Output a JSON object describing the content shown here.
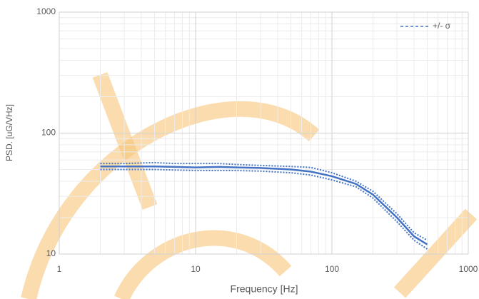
{
  "chart_data": {
    "type": "line",
    "x_label": "Frequency [Hz]",
    "y_label": "PSD. [uG/VHz]",
    "x": [
      2,
      3,
      5,
      7,
      10,
      15,
      20,
      30,
      50,
      70,
      100,
      150,
      200,
      300,
      400,
      500
    ],
    "series": [
      {
        "color": "#4472c4",
        "style": "solid",
        "values": [
          53,
          53,
          53,
          52.5,
          52,
          52.5,
          52,
          51.5,
          50,
          48,
          44,
          38,
          31,
          20,
          14,
          12
        ]
      },
      {
        "name": "+/- σ",
        "color": "#4472c4",
        "style": "dotted",
        "values": [
          56,
          56,
          57,
          56,
          56,
          56,
          55,
          54,
          53,
          52,
          47,
          40,
          33,
          21.5,
          15,
          13
        ]
      },
      {
        "color": "#4472c4",
        "style": "dotted",
        "values": [
          50,
          50,
          50,
          49.5,
          49,
          49,
          49,
          48.5,
          47,
          45,
          41,
          36,
          29,
          18.5,
          13,
          11
        ]
      }
    ],
    "xlim": [
      1,
      1000
    ],
    "ylim": [
      10,
      1000
    ],
    "xticks": [
      1,
      10,
      100,
      1000
    ],
    "yticks": [
      10,
      100,
      1000
    ],
    "xlog": true,
    "ylog": true,
    "grid": true,
    "legend": "top-right"
  }
}
